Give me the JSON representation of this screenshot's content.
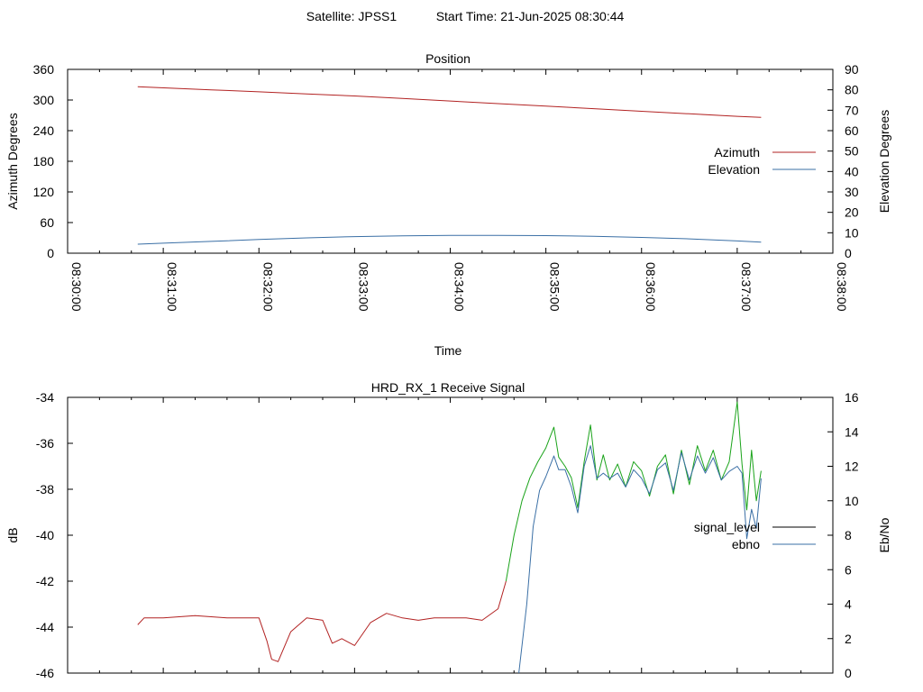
{
  "header": {
    "satellite": "Satellite: JPSS1",
    "start_time": "Start Time: 21-Jun-2025 08:30:44"
  },
  "chart_data": [
    {
      "type": "line",
      "title": "Position",
      "xlabel": "Time",
      "ylabel_left": "Azimuth Degrees",
      "ylabel_right": "Elevation Degrees",
      "xlim": [
        "08:30:00",
        "08:38:00"
      ],
      "xticks": [
        "08:30:00",
        "08:31:00",
        "08:32:00",
        "08:33:00",
        "08:34:00",
        "08:35:00",
        "08:36:00",
        "08:37:00",
        "08:38:00"
      ],
      "ylim_left": [
        0,
        360
      ],
      "yticks_left": [
        "0",
        "60",
        "120",
        "180",
        "240",
        "300",
        "360"
      ],
      "ylim_right": [
        0,
        90
      ],
      "yticks_right": [
        "0",
        "10",
        "20",
        "30",
        "40",
        "50",
        "60",
        "70",
        "80",
        "90"
      ],
      "grid": false,
      "legend": "right",
      "series": [
        {
          "name": "Azimuth",
          "axis": "left",
          "color": "#b22222",
          "x": [
            "08:30:44",
            "08:31:30",
            "08:32:00",
            "08:32:30",
            "08:33:00",
            "08:33:30",
            "08:34:00",
            "08:34:30",
            "08:35:00",
            "08:35:30",
            "08:36:00",
            "08:36:30",
            "08:37:00",
            "08:37:15"
          ],
          "y": [
            326,
            320,
            316,
            312,
            308,
            303,
            298,
            293,
            288,
            283,
            278,
            273,
            268,
            266
          ]
        },
        {
          "name": "Elevation",
          "axis": "right",
          "color": "#3a6fa5",
          "x": [
            "08:30:44",
            "08:31:00",
            "08:31:30",
            "08:32:00",
            "08:32:30",
            "08:33:00",
            "08:33:30",
            "08:34:00",
            "08:34:30",
            "08:35:00",
            "08:35:30",
            "08:36:00",
            "08:36:30",
            "08:37:00",
            "08:37:15"
          ],
          "y": [
            4.4,
            4.9,
            5.8,
            6.7,
            7.5,
            8.1,
            8.5,
            8.7,
            8.7,
            8.6,
            8.3,
            7.7,
            7.0,
            6.0,
            5.4
          ]
        }
      ]
    },
    {
      "type": "line",
      "title": "HRD_RX_1 Receive Signal",
      "ylabel_left": "dB",
      "ylabel_right": "Eb/No",
      "xlim": [
        "08:30:00",
        "08:38:00"
      ],
      "ylim_left": [
        -46,
        -34
      ],
      "yticks_left": [
        "-34",
        "-36",
        "-38",
        "-40",
        "-42",
        "-44",
        "-46"
      ],
      "ylim_right": [
        0,
        16
      ],
      "yticks_right": [
        "0",
        "2",
        "4",
        "6",
        "8",
        "10",
        "12",
        "14",
        "16"
      ],
      "grid": false,
      "legend": "right",
      "series": [
        {
          "name": "signal_level",
          "axis": "left",
          "color": "#b22222",
          "after_08_34_35_color": "#1aa31a",
          "x": [
            "08:30:44",
            "08:30:48",
            "08:31:00",
            "08:31:20",
            "08:31:40",
            "08:32:00",
            "08:32:05",
            "08:32:08",
            "08:32:12",
            "08:32:20",
            "08:32:30",
            "08:32:40",
            "08:32:46",
            "08:32:52",
            "08:33:00",
            "08:33:10",
            "08:33:15",
            "08:33:20",
            "08:33:30",
            "08:33:40",
            "08:33:50",
            "08:34:00",
            "08:34:10",
            "08:34:20",
            "08:34:30",
            "08:34:35",
            "08:34:40",
            "08:34:45",
            "08:34:50",
            "08:34:55",
            "08:35:00",
            "08:35:05",
            "08:35:08",
            "08:35:12",
            "08:35:16",
            "08:35:20",
            "08:35:24",
            "08:35:28",
            "08:35:32",
            "08:35:36",
            "08:35:40",
            "08:35:45",
            "08:35:50",
            "08:35:55",
            "08:36:00",
            "08:36:05",
            "08:36:10",
            "08:36:15",
            "08:36:20",
            "08:36:25",
            "08:36:30",
            "08:36:35",
            "08:36:40",
            "08:36:45",
            "08:36:50",
            "08:36:55",
            "08:37:00",
            "08:37:03",
            "08:37:06",
            "08:37:09",
            "08:37:12",
            "08:37:15"
          ],
          "y": [
            -43.9,
            -43.6,
            -43.6,
            -43.5,
            -43.6,
            -43.6,
            -44.6,
            -45.4,
            -45.5,
            -44.2,
            -43.6,
            -43.7,
            -44.7,
            -44.5,
            -44.8,
            -43.8,
            -43.6,
            -43.4,
            -43.6,
            -43.7,
            -43.6,
            -43.6,
            -43.6,
            -43.7,
            -43.2,
            -42.0,
            -40.0,
            -38.5,
            -37.5,
            -36.8,
            -36.2,
            -35.3,
            -36.6,
            -37.0,
            -37.5,
            -38.8,
            -36.8,
            -35.2,
            -37.6,
            -36.5,
            -37.6,
            -36.9,
            -37.9,
            -36.8,
            -37.2,
            -38.3,
            -37.0,
            -36.5,
            -38.2,
            -36.3,
            -37.8,
            -36.1,
            -37.2,
            -36.3,
            -37.6,
            -36.8,
            -34.2,
            -36.9,
            -38.9,
            -36.3,
            -38.5,
            -37.2
          ]
        },
        {
          "name": "ebno",
          "axis": "right",
          "color": "#3a6fa5",
          "x": [
            "08:34:43",
            "08:34:48",
            "08:34:52",
            "08:34:56",
            "08:35:00",
            "08:35:05",
            "08:35:08",
            "08:35:12",
            "08:35:16",
            "08:35:20",
            "08:35:24",
            "08:35:28",
            "08:35:32",
            "08:35:36",
            "08:35:40",
            "08:35:45",
            "08:35:50",
            "08:35:55",
            "08:36:00",
            "08:36:05",
            "08:36:10",
            "08:36:15",
            "08:36:20",
            "08:36:25",
            "08:36:30",
            "08:36:35",
            "08:36:40",
            "08:36:45",
            "08:36:50",
            "08:36:55",
            "08:37:00",
            "08:37:03",
            "08:37:06",
            "08:37:09",
            "08:37:12",
            "08:37:15"
          ],
          "y": [
            0,
            4.0,
            8.5,
            10.6,
            11.4,
            12.6,
            11.8,
            11.8,
            10.8,
            9.3,
            12.0,
            13.2,
            11.3,
            11.6,
            11.3,
            11.6,
            10.8,
            11.8,
            11.3,
            10.4,
            11.8,
            12.2,
            10.6,
            12.8,
            11.2,
            12.6,
            11.6,
            12.5,
            11.2,
            11.7,
            12.0,
            11.6,
            7.8,
            9.5,
            8.4,
            11.3
          ]
        }
      ]
    }
  ]
}
